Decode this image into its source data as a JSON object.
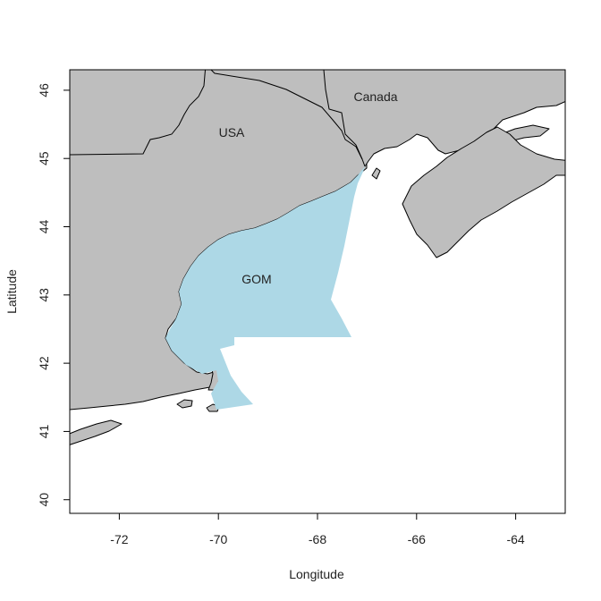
{
  "map": {
    "xlabel": "Longitude",
    "ylabel": "Latitude",
    "xlim": [
      -73,
      -63
    ],
    "ylim": [
      39.8,
      46.3
    ],
    "x_ticks": [
      -72,
      -70,
      -68,
      -66,
      -64
    ],
    "y_ticks": [
      40,
      41,
      42,
      43,
      44,
      45,
      46
    ],
    "labels": {
      "usa": "USA",
      "canada": "Canada",
      "gom": "GOM"
    },
    "colors": {
      "land": "#bebebe",
      "gom": "#add8e6",
      "ocean": "#ffffff"
    }
  }
}
